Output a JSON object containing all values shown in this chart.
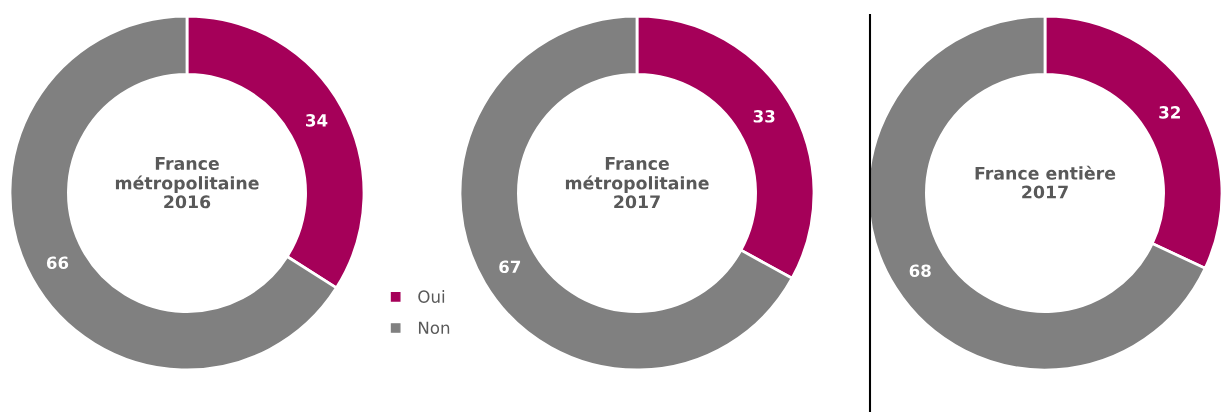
{
  "chart_data": [
    {
      "type": "donut",
      "title": "France\nmétropolitaine\n2016",
      "categories": [
        "Oui",
        "Non"
      ],
      "values": [
        34,
        66
      ],
      "colors": [
        "#a50059",
        "#808080"
      ],
      "data_labels": true,
      "legend": "bottom right"
    },
    {
      "type": "donut",
      "title": "France\nmétropolitaine\n2017",
      "categories": [
        null,
        null
      ],
      "values": [
        33,
        67
      ],
      "colors": [
        "#a50059",
        "#808080"
      ],
      "data_labels": true
    },
    {
      "type": "donut",
      "title": "France entière\n2017",
      "categories": [
        null,
        null
      ],
      "values": [
        32,
        68
      ],
      "colors": [
        "#a50059",
        "#808080"
      ],
      "data_labels": true
    }
  ]
}
